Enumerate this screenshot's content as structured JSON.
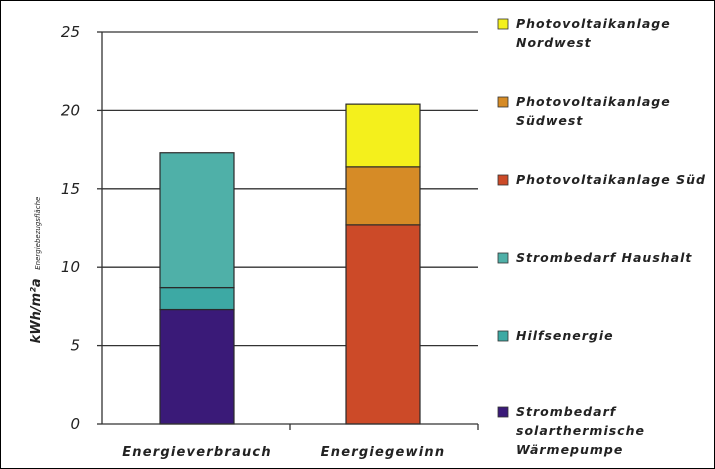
{
  "chart_data": {
    "type": "bar",
    "stacked": true,
    "categories": [
      "Energieverbrauch",
      "Energiegewinn"
    ],
    "ylabel": "kWh/m²a",
    "ylabel_sub": "Energiebezugsfläche",
    "ylim": [
      0,
      25
    ],
    "yticks": [
      0,
      5,
      10,
      15,
      20,
      25
    ],
    "grid": true,
    "legend_position": "right",
    "series": [
      {
        "name": "Strombedarf solarthermische Wärmepumpe",
        "legend_lines": [
          "Strombedarf",
          "solarthermische",
          "Wärmepumpe"
        ],
        "color": "#3a1a78",
        "values": [
          7.3,
          0
        ]
      },
      {
        "name": "Hilfsenergie",
        "legend_lines": [
          "Hilfsenergie"
        ],
        "color": "#3da9a4",
        "values": [
          1.4,
          0
        ]
      },
      {
        "name": "Strombedarf Haushalt",
        "legend_lines": [
          "Strombedarf Haushalt"
        ],
        "color": "#4fb0a8",
        "values": [
          8.6,
          0
        ]
      },
      {
        "name": "Photovoltaikanlage Süd",
        "legend_lines": [
          "Photovoltaikanlage Süd"
        ],
        "color": "#cc4a28",
        "values": [
          0,
          12.7
        ]
      },
      {
        "name": "Photovoltaikanlage Südwest",
        "legend_lines": [
          "Photovoltaikanlage",
          "Südwest"
        ],
        "color": "#d68b26",
        "values": [
          0,
          3.7
        ]
      },
      {
        "name": "Photovoltaikanlage Nordwest",
        "legend_lines": [
          "Photovoltaikanlage",
          "Nordwest"
        ],
        "color": "#f4f01c",
        "values": [
          0,
          4.0
        ]
      }
    ],
    "legend_order": [
      5,
      4,
      3,
      2,
      1,
      0
    ]
  }
}
